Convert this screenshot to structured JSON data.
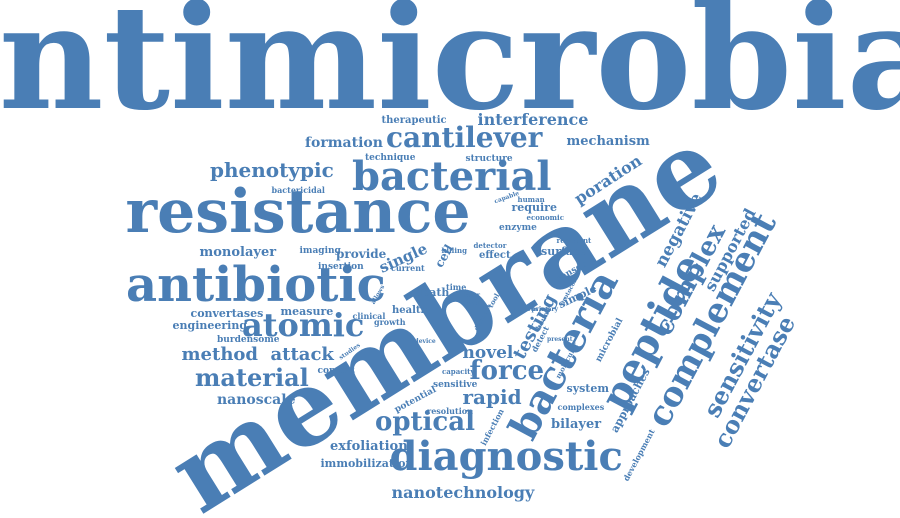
{
  "colors": {
    "word": "#4a7eb5",
    "background": "#ffffff"
  },
  "words": [
    "antimicrobial",
    "membrane",
    "resistance",
    "bacterial",
    "antibiotic",
    "bacteria",
    "diagnostic",
    "atomic",
    "peptide",
    "complement",
    "cantilever",
    "complex",
    "sensitivity",
    "convertase",
    "force",
    "optical",
    "material",
    "method",
    "attack",
    "phenotypic",
    "rapid",
    "nanotechnology",
    "testing",
    "novel",
    "supported",
    "negative",
    "interference",
    "formation",
    "mechanism",
    "poration",
    "single",
    "bilayer",
    "monolayer",
    "engineering",
    "convertases",
    "measure",
    "nanoscale",
    "exfoliation",
    "immobilization",
    "provide",
    "therapeutic",
    "technique",
    "structure",
    "require",
    "surface",
    "imaging",
    "insertion",
    "bactericidal",
    "burdensome",
    "death",
    "health",
    "clinical",
    "growth",
    "combat",
    "cell",
    "effect",
    "enzyme",
    "detector",
    "killing",
    "capable",
    "economic",
    "human",
    "resistant",
    "current",
    "simple",
    "system",
    "sensor",
    "microbial",
    "approaches",
    "development",
    "complexes",
    "sensitive",
    "potential",
    "resolution",
    "infection",
    "capacity",
    "detect",
    "time",
    "laser",
    "work",
    "tool",
    "bound",
    "serious",
    "primary",
    "molecular",
    "device",
    "protocol",
    "present",
    "studies",
    "allows",
    "dormant"
  ]
}
